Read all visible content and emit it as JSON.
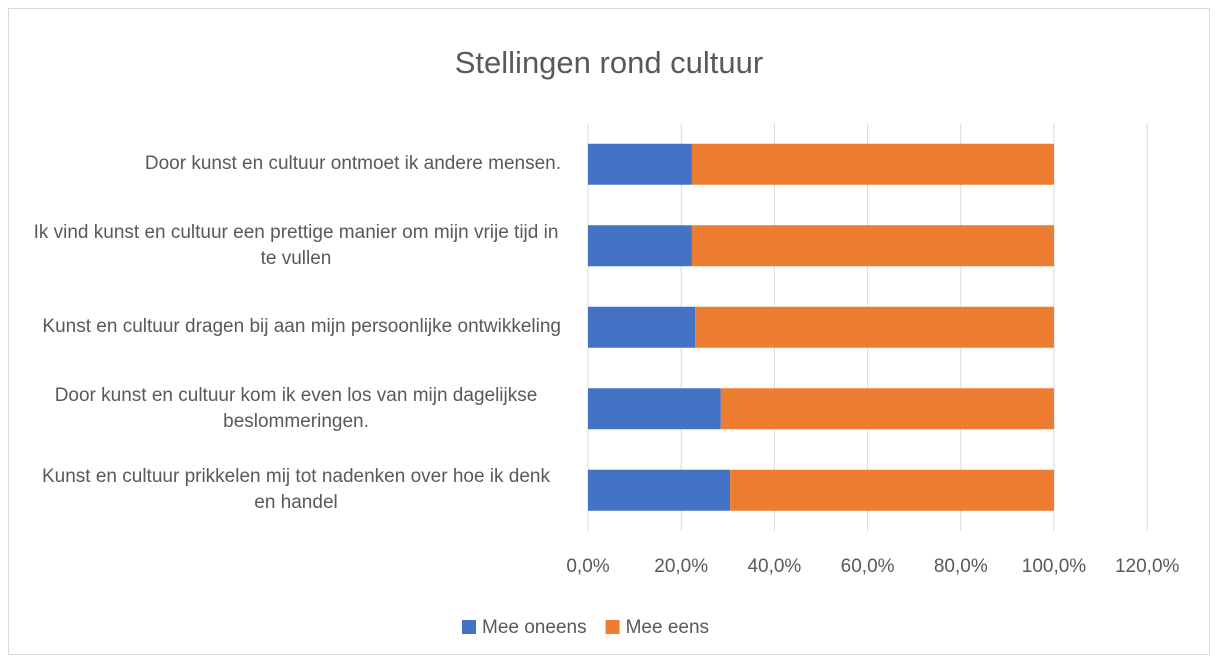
{
  "chart_data": {
    "type": "stacked-bar-horizontal",
    "title": "Stellingen rond cultuur",
    "categories": [
      "Door kunst en cultuur ontmoet ik andere mensen.",
      "Ik vind kunst en cultuur een prettige manier om mijn vrije tijd in te vullen",
      "Kunst en cultuur dragen bij aan mijn persoonlijke ontwikkeling",
      "Door kunst en cultuur kom ik even los van mijn dagelijkse beslommeringen.",
      "Kunst en cultuur prikkelen mij tot nadenken over hoe ik denk en handel"
    ],
    "series": [
      {
        "name": "Mee oneens",
        "color": "#4472c4",
        "values": [
          22.3,
          22.3,
          23.0,
          28.5,
          30.5
        ]
      },
      {
        "name": "Mee eens",
        "color": "#ed7d31",
        "values": [
          77.7,
          77.7,
          77.0,
          71.5,
          69.5
        ]
      }
    ],
    "xlim": [
      0,
      120
    ],
    "xticks": [
      {
        "value": 0,
        "label": "0,0%"
      },
      {
        "value": 20,
        "label": "20,0%"
      },
      {
        "value": 40,
        "label": "40,0%"
      },
      {
        "value": 60,
        "label": "60,0%"
      },
      {
        "value": 80,
        "label": "80,0%"
      },
      {
        "value": 100,
        "label": "100,0%"
      },
      {
        "value": 120,
        "label": "120,0%"
      }
    ],
    "grid": true,
    "legend": "bottom"
  }
}
